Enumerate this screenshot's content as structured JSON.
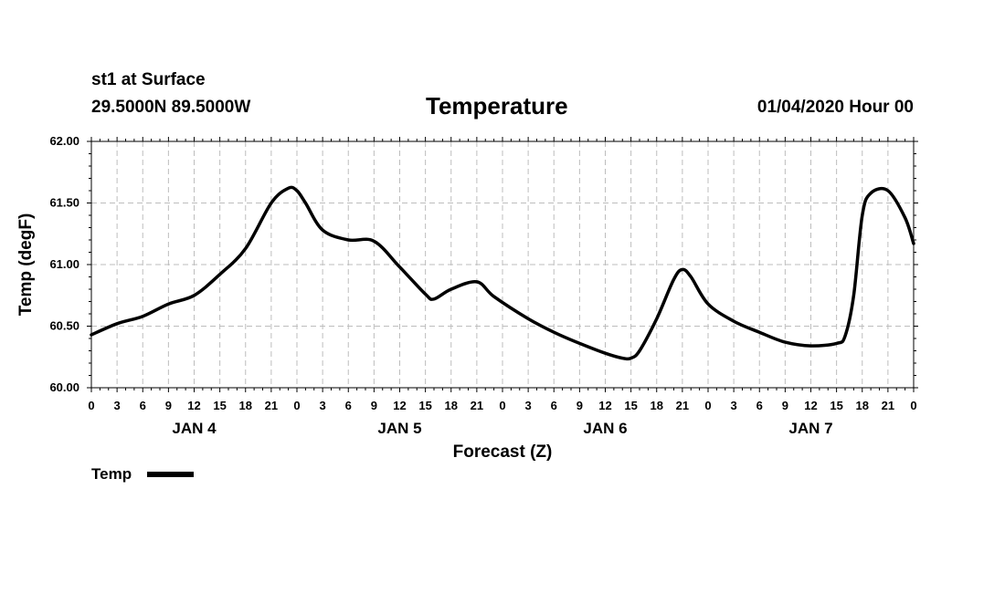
{
  "header": {
    "station": "st1 at Surface",
    "coords": "29.5000N 89.5000W",
    "title": "Temperature",
    "datestamp": "01/04/2020 Hour 00"
  },
  "chart_data": {
    "type": "line",
    "title": "Temperature",
    "xlabel": "Forecast (Z)",
    "ylabel": "Temp (degF)",
    "x_unit": "hours since 01/04/2020 00Z",
    "xlim": [
      0,
      96
    ],
    "ylim": [
      60.0,
      62.0
    ],
    "grid": true,
    "yticks": [
      "60.00",
      "60.50",
      "61.00",
      "61.50",
      "62.00"
    ],
    "xtick_labels": [
      "0",
      "3",
      "6",
      "9",
      "12",
      "15",
      "18",
      "21",
      "0",
      "3",
      "6",
      "9",
      "12",
      "15",
      "18",
      "21",
      "0",
      "3",
      "6",
      "9",
      "12",
      "15",
      "18",
      "21",
      "0",
      "3",
      "6",
      "9",
      "12",
      "15",
      "18",
      "21",
      "0"
    ],
    "day_labels": [
      {
        "label": "JAN 4",
        "x": 12
      },
      {
        "label": "JAN 5",
        "x": 36
      },
      {
        "label": "JAN 6",
        "x": 60
      },
      {
        "label": "JAN 7",
        "x": 84
      }
    ],
    "legend": {
      "position": "bottom-left",
      "entries": [
        "Temp"
      ]
    },
    "series": [
      {
        "name": "Temp",
        "color": "#000000",
        "x": [
          0,
          3,
          6,
          9,
          12,
          15,
          18,
          21,
          23,
          24,
          25,
          27,
          30,
          33,
          36,
          39,
          40,
          42,
          45,
          47,
          51,
          54,
          57,
          60,
          62,
          63,
          64,
          66,
          68,
          69,
          70,
          72,
          75,
          78,
          81,
          84,
          87,
          88,
          89,
          90,
          91,
          93,
          95,
          96
        ],
        "values": [
          60.43,
          60.52,
          60.58,
          60.68,
          60.75,
          60.92,
          61.13,
          61.5,
          61.62,
          61.6,
          61.5,
          61.28,
          61.2,
          61.19,
          60.98,
          60.76,
          60.72,
          60.8,
          60.86,
          60.74,
          60.56,
          60.45,
          60.36,
          60.28,
          60.24,
          60.24,
          60.3,
          60.56,
          60.88,
          60.96,
          60.9,
          60.68,
          60.54,
          60.45,
          60.37,
          60.34,
          60.36,
          60.42,
          60.75,
          61.4,
          61.58,
          61.6,
          61.38,
          61.17
        ]
      }
    ]
  }
}
